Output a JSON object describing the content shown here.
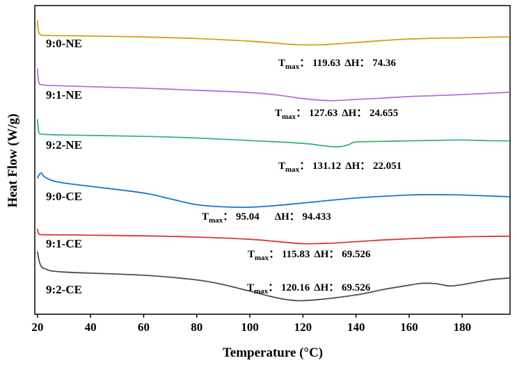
{
  "chart_data": {
    "type": "line",
    "xlabel": "Temperature (°C)",
    "ylabel": "Heat Flow (W/g)",
    "xlim": [
      19,
      198
    ],
    "x_ticks": [
      20,
      40,
      60,
      80,
      100,
      120,
      140,
      160,
      180
    ],
    "y_ticks_shown": false,
    "series": [
      {
        "name": "9:0-NE",
        "color": "#D4A017",
        "points": [
          [
            20,
            2.0
          ],
          [
            20.5,
            1.25
          ],
          [
            22,
            1.09
          ],
          [
            25,
            1.08
          ],
          [
            40,
            1.05
          ],
          [
            60,
            0.99
          ],
          [
            80,
            0.9
          ],
          [
            100,
            0.74
          ],
          [
            110,
            0.62
          ],
          [
            115,
            0.55
          ],
          [
            120,
            0.52
          ],
          [
            125,
            0.52
          ],
          [
            130,
            0.55
          ],
          [
            140,
            0.66
          ],
          [
            150,
            0.78
          ],
          [
            160,
            0.87
          ],
          [
            170,
            0.92
          ],
          [
            180,
            0.94
          ],
          [
            190,
            0.98
          ],
          [
            198,
            1.0
          ]
        ]
      },
      {
        "name": "9:1-NE",
        "color": "#B56FD9",
        "points": [
          [
            20,
            2.1
          ],
          [
            20.5,
            1.3
          ],
          [
            22,
            1.12
          ],
          [
            30,
            1.06
          ],
          [
            60,
            0.92
          ],
          [
            80,
            0.8
          ],
          [
            100,
            0.66
          ],
          [
            110,
            0.52
          ],
          [
            120,
            0.3
          ],
          [
            130,
            0.18
          ],
          [
            140,
            0.25
          ],
          [
            150,
            0.33
          ],
          [
            160,
            0.42
          ],
          [
            170,
            0.48
          ],
          [
            180,
            0.54
          ],
          [
            190,
            0.62
          ],
          [
            198,
            0.68
          ]
        ]
      },
      {
        "name": "9:2-NE",
        "color": "#3CB371",
        "points": [
          [
            20,
            2.15
          ],
          [
            20.5,
            1.4
          ],
          [
            22,
            1.25
          ],
          [
            30,
            1.2
          ],
          [
            60,
            1.12
          ],
          [
            80,
            1.02
          ],
          [
            100,
            0.87
          ],
          [
            120,
            0.7
          ],
          [
            127,
            0.57
          ],
          [
            133,
            0.49
          ],
          [
            137,
            0.61
          ],
          [
            140,
            0.78
          ],
          [
            150,
            0.82
          ],
          [
            170,
            0.88
          ],
          [
            180,
            0.9
          ],
          [
            190,
            0.86
          ],
          [
            198,
            0.85
          ]
        ]
      },
      {
        "name": "9:0-CE",
        "color": "#1874CD",
        "points": [
          [
            20,
            1.72
          ],
          [
            20.5,
            1.9
          ],
          [
            21.5,
            2.05
          ],
          [
            23,
            1.78
          ],
          [
            28,
            1.5
          ],
          [
            40,
            1.25
          ],
          [
            60,
            0.85
          ],
          [
            70,
            0.5
          ],
          [
            80,
            0.15
          ],
          [
            90,
            0.02
          ],
          [
            100,
            0.0
          ],
          [
            110,
            0.1
          ],
          [
            120,
            0.25
          ],
          [
            140,
            0.55
          ],
          [
            160,
            0.73
          ],
          [
            170,
            0.75
          ],
          [
            180,
            0.73
          ],
          [
            190,
            0.67
          ],
          [
            198,
            0.63
          ]
        ]
      },
      {
        "name": "9:1-CE",
        "color": "#D93636",
        "points": [
          [
            20,
            2.1
          ],
          [
            20.5,
            1.4
          ],
          [
            22,
            1.28
          ],
          [
            30,
            1.25
          ],
          [
            60,
            1.12
          ],
          [
            80,
            0.95
          ],
          [
            100,
            0.65
          ],
          [
            110,
            0.35
          ],
          [
            120,
            0.05
          ],
          [
            130,
            0.1
          ],
          [
            140,
            0.32
          ],
          [
            150,
            0.55
          ],
          [
            160,
            0.72
          ],
          [
            170,
            0.88
          ],
          [
            180,
            0.98
          ],
          [
            190,
            1.05
          ],
          [
            198,
            1.07
          ]
        ]
      },
      {
        "name": "9:2-CE",
        "color": "#4D4D4D",
        "points": [
          [
            20,
            2.7
          ],
          [
            21,
            2.05
          ],
          [
            23,
            1.78
          ],
          [
            30,
            1.62
          ],
          [
            60,
            1.45
          ],
          [
            80,
            1.2
          ],
          [
            90,
            0.95
          ],
          [
            100,
            0.6
          ],
          [
            110,
            0.25
          ],
          [
            117,
            0.1
          ],
          [
            125,
            0.14
          ],
          [
            140,
            0.4
          ],
          [
            150,
            0.68
          ],
          [
            160,
            0.92
          ],
          [
            165,
            1.02
          ],
          [
            170,
            1.0
          ],
          [
            175,
            0.88
          ],
          [
            180,
            0.95
          ],
          [
            190,
            1.2
          ],
          [
            198,
            1.3
          ]
        ]
      }
    ],
    "labels": {
      "series_names": [
        "9:0-NE",
        "9:1-NE",
        "9:2-NE",
        "9:0-CE",
        "9:1-CE",
        "9:2-CE"
      ],
      "annotations": [
        {
          "tmax_main": "T",
          "tmax_sub": "max",
          "tmax_value": "： 119.63",
          "dh_label": "ΔH",
          "dh_value": "： 74.36"
        },
        {
          "tmax_main": "T",
          "tmax_sub": "max",
          "tmax_value": "： 127.63",
          "dh_label": "ΔH",
          "dh_value": "： 24.655"
        },
        {
          "tmax_main": "T",
          "tmax_sub": "max",
          "tmax_value": "： 131.12",
          "dh_label": "ΔH",
          "dh_value": "： 22.051"
        },
        {
          "tmax_main": "T",
          "tmax_sub": "max",
          "tmax_value": "： 95.04",
          "dh_label": "ΔH",
          "dh_value": "： 94.433"
        },
        {
          "tmax_main": "T",
          "tmax_sub": "max",
          "tmax_value": "： 115.83",
          "dh_label": "ΔH",
          "dh_value": "： 69.526"
        },
        {
          "tmax_main": "T",
          "tmax_sub": "max",
          "tmax_value": "： 120.16",
          "dh_label": "ΔH",
          "dh_value": "： 69.526"
        }
      ]
    }
  }
}
